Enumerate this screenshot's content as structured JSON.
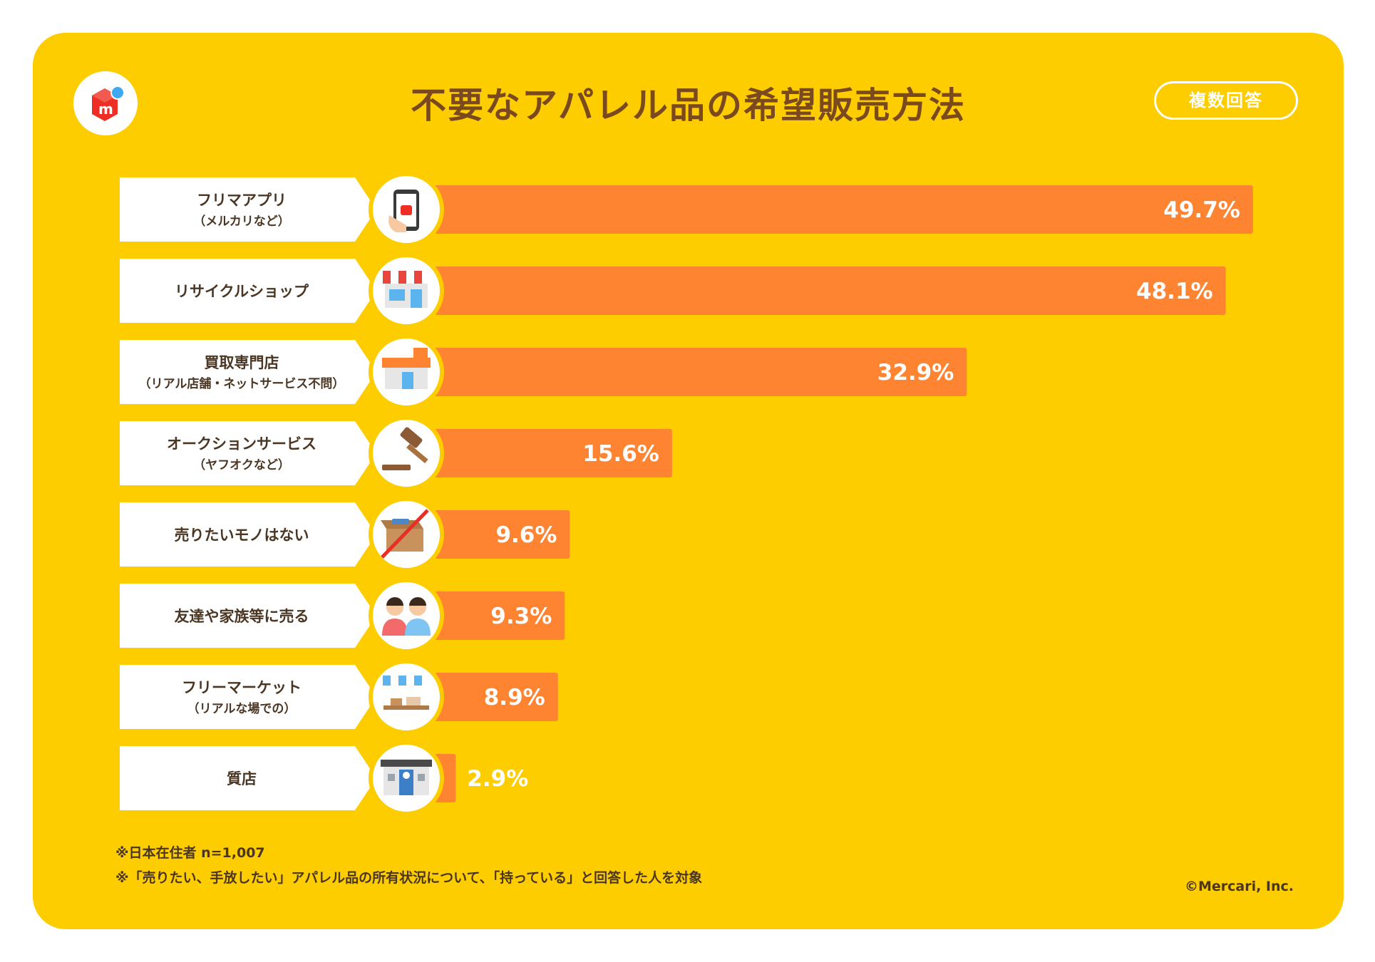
{
  "header": {
    "title": "不要なアパレル品の希望販売方法",
    "badge": "複数回答"
  },
  "colors": {
    "background": "#FDCD00",
    "bar": "#FF8432",
    "title": "#7A4A1E",
    "text": "#4a3623",
    "logo_red": "#EE2E24",
    "logo_blue": "#3EA8F0"
  },
  "chart_data": {
    "type": "bar",
    "orientation": "horizontal",
    "title": "不要なアパレル品の希望販売方法",
    "categories": [
      {
        "label": "フリマアプリ",
        "sublabel": "（メルカリなど）",
        "value_label": "49.7%",
        "icon": "smartphone-icon"
      },
      {
        "label": "リサイクルショップ",
        "sublabel": "",
        "value_label": "48.1%",
        "icon": "shop-icon"
      },
      {
        "label": "買取専門店",
        "sublabel": "（リアル店舗・ネットサービス不問）",
        "value_label": "32.9%",
        "icon": "store-icon"
      },
      {
        "label": "オークションサービス",
        "sublabel": "（ヤフオクなど）",
        "value_label": "15.6%",
        "icon": "gavel-icon"
      },
      {
        "label": "売りたいモノはない",
        "sublabel": "",
        "value_label": "9.6%",
        "icon": "no-box-icon"
      },
      {
        "label": "友達や家族等に売る",
        "sublabel": "",
        "value_label": "9.3%",
        "icon": "people-icon"
      },
      {
        "label": "フリーマーケット",
        "sublabel": "（リアルな場での）",
        "value_label": "8.9%",
        "icon": "market-stall-icon"
      },
      {
        "label": "質店",
        "sublabel": "",
        "value_label": "2.9%",
        "icon": "pawnshop-icon"
      }
    ],
    "values": [
      49.7,
      48.1,
      32.9,
      15.6,
      9.6,
      9.3,
      8.9,
      2.9
    ],
    "unit": "%",
    "xlim": [
      0,
      50
    ]
  },
  "footnotes": {
    "note1": "※日本在住者 n=1,007",
    "note2": "※「売りたい、手放したい」アパレル品の所有状況について、「持っている」と回答した人を対象",
    "copyright": "©Mercari, Inc."
  }
}
